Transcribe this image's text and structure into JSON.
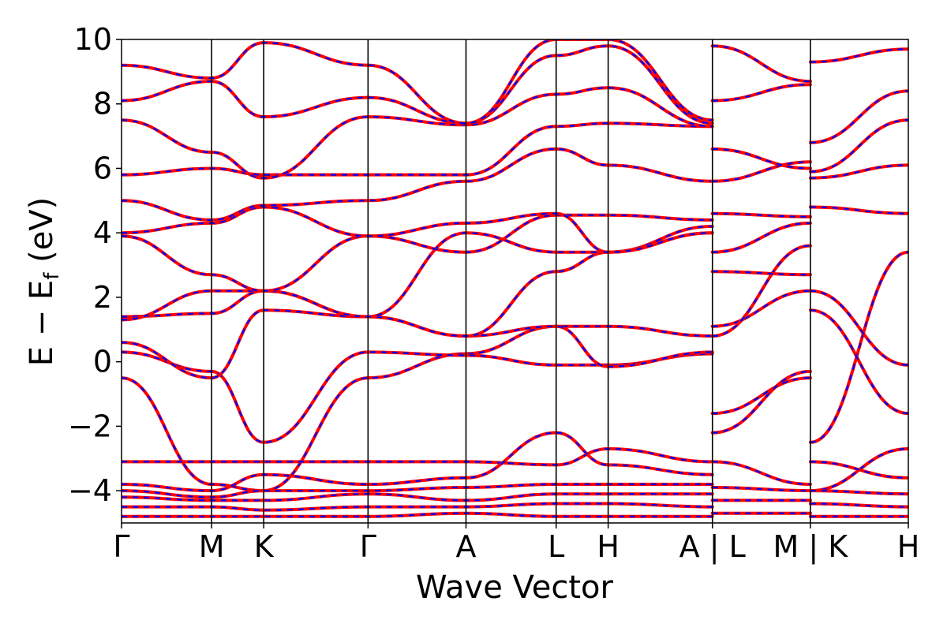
{
  "chart_data": {
    "type": "line",
    "title": "",
    "xlabel": "Wave Vector",
    "ylabel": {
      "main": "E − E",
      "subscript": "f",
      "unit": " (eV)"
    },
    "ylim": [
      -5,
      10
    ],
    "yticks": [
      {
        "value": -4,
        "label": "−4"
      },
      {
        "value": -2,
        "label": "−2"
      },
      {
        "value": 0,
        "label": "0"
      },
      {
        "value": 2,
        "label": "2"
      },
      {
        "value": 4,
        "label": "4"
      },
      {
        "value": 6,
        "label": "6"
      },
      {
        "value": 8,
        "label": "8"
      },
      {
        "value": 10,
        "label": "10"
      }
    ],
    "grid": false,
    "legend": "none",
    "kpath": [
      {
        "label": "Γ",
        "x": 0.0
      },
      {
        "label": "M",
        "x": 0.1145
      },
      {
        "label": "K",
        "x": 0.1807
      },
      {
        "label": "Γ",
        "x": 0.3133
      },
      {
        "label": "A",
        "x": 0.4378
      },
      {
        "label": "L",
        "x": 0.5524
      },
      {
        "label": "H",
        "x": 0.6185
      },
      {
        "label": "A | L",
        "x": 0.751
      },
      {
        "label": "M | K",
        "x": 0.8755
      },
      {
        "label": "H",
        "x": 1.0
      }
    ],
    "series_styles": [
      {
        "color": "#ff0000",
        "style": "solid"
      },
      {
        "color": "#0000ff",
        "style": "dashed"
      }
    ],
    "bands": [
      {
        "x": [
          0.0,
          0.1145,
          0.1807,
          0.3133,
          0.4378,
          0.5524,
          0.6185,
          0.751
        ],
        "y": [
          -0.5,
          -3.8,
          -4.0,
          -0.5,
          0.25,
          1.1,
          1.1,
          0.8
        ]
      },
      {
        "x": [
          0.0,
          0.1145,
          0.1807,
          0.3133,
          0.4378,
          0.5524,
          0.6185,
          0.751
        ],
        "y": [
          0.3,
          -0.3,
          -2.5,
          0.3,
          0.2,
          -0.1,
          -0.1,
          0.25
        ]
      },
      {
        "x": [
          0.0,
          0.1145,
          0.1807,
          0.3133,
          0.4378,
          0.5524,
          0.6185,
          0.751
        ],
        "y": [
          0.6,
          -0.5,
          1.6,
          1.4,
          0.8,
          1.1,
          -0.15,
          0.3
        ]
      },
      {
        "x": [
          0.0,
          0.1145,
          0.1807,
          0.3133,
          0.4378,
          0.5524,
          0.6185,
          0.751
        ],
        "y": [
          1.4,
          1.5,
          2.2,
          1.4,
          0.8,
          2.8,
          3.4,
          4.0
        ]
      },
      {
        "x": [
          0.0,
          0.1145,
          0.1807,
          0.3133,
          0.4378,
          0.5524,
          0.6185,
          0.751
        ],
        "y": [
          1.3,
          2.2,
          2.2,
          1.4,
          4.0,
          3.4,
          3.4,
          4.2
        ]
      },
      {
        "x": [
          0.0,
          0.1145,
          0.1807,
          0.3133,
          0.4378,
          0.5524,
          0.6185,
          0.751
        ],
        "y": [
          3.9,
          2.7,
          2.2,
          3.9,
          3.4,
          4.55,
          4.55,
          4.4
        ]
      },
      {
        "x": [
          0.0,
          0.1145,
          0.1807,
          0.3133,
          0.4378,
          0.5524,
          0.6185,
          0.751
        ],
        "y": [
          4.0,
          4.3,
          4.8,
          3.9,
          4.3,
          4.6,
          3.4,
          4.0
        ]
      },
      {
        "x": [
          0.0,
          0.1145,
          0.1807,
          0.3133,
          0.4378,
          0.5524,
          0.6185,
          0.751
        ],
        "y": [
          5.0,
          4.4,
          4.85,
          5.0,
          5.6,
          6.6,
          6.1,
          5.6
        ]
      },
      {
        "x": [
          0.0,
          0.1145,
          0.1807,
          0.3133,
          0.4378,
          0.5524,
          0.6185,
          0.751
        ],
        "y": [
          5.8,
          6.0,
          5.8,
          5.8,
          5.8,
          7.3,
          7.4,
          7.3
        ]
      },
      {
        "x": [
          0.0,
          0.1145,
          0.1807,
          0.3133,
          0.4378,
          0.5524,
          0.6185,
          0.751
        ],
        "y": [
          7.5,
          6.5,
          5.7,
          7.6,
          7.35,
          8.3,
          8.5,
          7.3
        ]
      },
      {
        "x": [
          0.0,
          0.1145,
          0.1807,
          0.3133,
          0.4378,
          0.5524,
          0.6185,
          0.751
        ],
        "y": [
          8.1,
          8.7,
          7.6,
          8.2,
          7.4,
          9.5,
          9.8,
          7.4
        ]
      },
      {
        "x": [
          0.0,
          0.1145,
          0.1807,
          0.3133,
          0.4378,
          0.5524,
          0.6185,
          0.751
        ],
        "y": [
          9.2,
          8.8,
          9.9,
          9.2,
          7.4,
          10.0,
          10.0,
          7.5
        ]
      },
      {
        "x": [
          0.0,
          0.1145,
          0.1807,
          0.3133,
          0.4378,
          0.5524,
          0.6185,
          0.751
        ],
        "y": [
          -3.1,
          -3.1,
          -3.1,
          -3.1,
          -3.1,
          -3.2,
          -2.7,
          -3.1
        ]
      },
      {
        "x": [
          0.0,
          0.1145,
          0.1807,
          0.3133,
          0.4378,
          0.5524,
          0.6185,
          0.751
        ],
        "y": [
          -3.8,
          -4.0,
          -3.5,
          -3.8,
          -3.6,
          -2.2,
          -3.2,
          -3.5
        ]
      },
      {
        "x": [
          0.0,
          0.1145,
          0.1807,
          0.3133,
          0.4378,
          0.5524,
          0.6185,
          0.751
        ],
        "y": [
          -4.0,
          -4.2,
          -4.0,
          -4.0,
          -3.9,
          -3.8,
          -3.8,
          -3.8
        ]
      },
      {
        "x": [
          0.0,
          0.1145,
          0.1807,
          0.3133,
          0.4378,
          0.5524,
          0.6185,
          0.751
        ],
        "y": [
          -4.2,
          -4.3,
          -4.3,
          -4.1,
          -4.3,
          -4.1,
          -4.1,
          -4.1
        ]
      },
      {
        "x": [
          0.0,
          0.1145,
          0.1807,
          0.3133,
          0.4378,
          0.5524,
          0.6185,
          0.751
        ],
        "y": [
          -4.5,
          -4.5,
          -4.6,
          -4.5,
          -4.5,
          -4.4,
          -4.4,
          -4.5
        ]
      },
      {
        "x": [
          0.0,
          0.1145,
          0.1807,
          0.3133,
          0.4378,
          0.5524,
          0.6185,
          0.751
        ],
        "y": [
          -4.8,
          -4.8,
          -4.8,
          -4.8,
          -4.7,
          -4.8,
          -4.8,
          -4.8
        ]
      },
      {
        "x": [
          0.751,
          0.8755
        ],
        "y": [
          -1.6,
          -0.5
        ]
      },
      {
        "x": [
          0.751,
          0.8755
        ],
        "y": [
          -2.2,
          -0.3
        ]
      },
      {
        "x": [
          0.751,
          0.8755
        ],
        "y": [
          1.1,
          2.2
        ]
      },
      {
        "x": [
          0.751,
          0.8755
        ],
        "y": [
          0.8,
          3.6
        ]
      },
      {
        "x": [
          0.751,
          0.8755
        ],
        "y": [
          2.8,
          2.7
        ]
      },
      {
        "x": [
          0.751,
          0.8755
        ],
        "y": [
          3.4,
          4.3
        ]
      },
      {
        "x": [
          0.751,
          0.8755
        ],
        "y": [
          4.6,
          4.5
        ]
      },
      {
        "x": [
          0.751,
          0.8755
        ],
        "y": [
          5.6,
          6.2
        ]
      },
      {
        "x": [
          0.751,
          0.8755
        ],
        "y": [
          6.6,
          6.0
        ]
      },
      {
        "x": [
          0.751,
          0.8755
        ],
        "y": [
          8.1,
          8.6
        ]
      },
      {
        "x": [
          0.751,
          0.8755
        ],
        "y": [
          9.8,
          8.7
        ]
      },
      {
        "x": [
          0.751,
          0.8755
        ],
        "y": [
          -3.1,
          -3.8
        ]
      },
      {
        "x": [
          0.751,
          0.8755
        ],
        "y": [
          -3.9,
          -4.0
        ]
      },
      {
        "x": [
          0.751,
          0.8755
        ],
        "y": [
          -4.3,
          -4.3
        ]
      },
      {
        "x": [
          0.751,
          0.8755
        ],
        "y": [
          -4.7,
          -4.7
        ]
      },
      {
        "x": [
          0.8755,
          1.0
        ],
        "y": [
          -4.0,
          -2.7
        ]
      },
      {
        "x": [
          0.8755,
          1.0
        ],
        "y": [
          -2.5,
          3.4
        ]
      },
      {
        "x": [
          0.8755,
          1.0
        ],
        "y": [
          1.6,
          -1.6
        ]
      },
      {
        "x": [
          0.8755,
          1.0
        ],
        "y": [
          2.2,
          -0.1
        ]
      },
      {
        "x": [
          0.8755,
          1.0
        ],
        "y": [
          4.8,
          4.6
        ]
      },
      {
        "x": [
          0.8755,
          1.0
        ],
        "y": [
          5.7,
          6.1
        ]
      },
      {
        "x": [
          0.8755,
          1.0
        ],
        "y": [
          5.9,
          7.5
        ]
      },
      {
        "x": [
          0.8755,
          1.0
        ],
        "y": [
          6.8,
          8.4
        ]
      },
      {
        "x": [
          0.8755,
          1.0
        ],
        "y": [
          9.3,
          9.7
        ]
      },
      {
        "x": [
          0.8755,
          1.0
        ],
        "y": [
          -3.1,
          -3.6
        ]
      },
      {
        "x": [
          0.8755,
          1.0
        ],
        "y": [
          -4.0,
          -4.1
        ]
      },
      {
        "x": [
          0.8755,
          1.0
        ],
        "y": [
          -4.4,
          -4.5
        ]
      },
      {
        "x": [
          0.8755,
          1.0
        ],
        "y": [
          -4.8,
          -4.8
        ]
      }
    ]
  }
}
